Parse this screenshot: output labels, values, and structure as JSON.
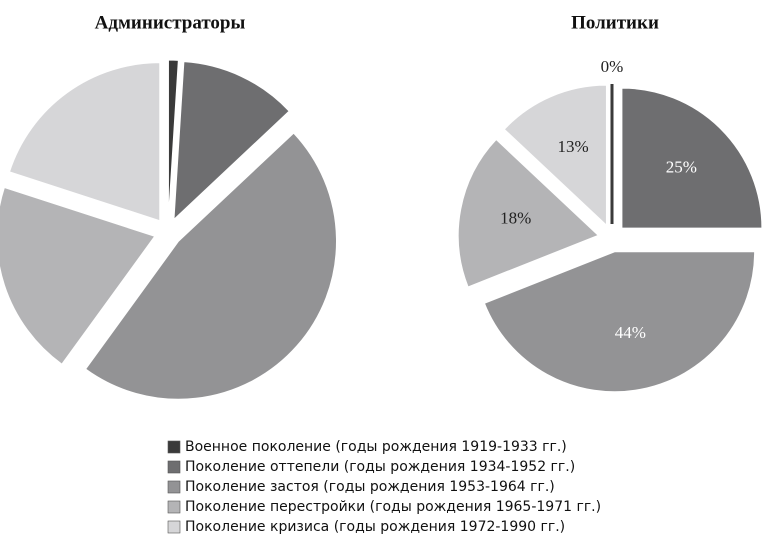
{
  "legend": [
    "Военное поколение (годы рождения 1919-1933 гг.)",
    "Поколение оттепели (годы рождения 1934-1952 гг.)",
    "Поколение застоя (годы рождения 1953-1964 гг.)",
    "Поколение перестройки (годы рождения 1965-1971 гг.)",
    "Поколение кризиса (годы рождения 1972-1990 гг.)"
  ],
  "colors": [
    "#3a3a3a",
    "#6e6e70",
    "#939395",
    "#b4b4b6",
    "#d6d6d8"
  ],
  "chart_data": [
    {
      "type": "pie",
      "title": "Администраторы",
      "values": [
        1,
        12,
        47,
        20,
        20
      ]
    },
    {
      "type": "pie",
      "title": "Политики",
      "values": [
        0,
        25,
        44,
        18,
        13
      ],
      "value_labels": [
        "0%",
        "25%",
        "44%",
        "18%",
        "13%"
      ]
    }
  ]
}
